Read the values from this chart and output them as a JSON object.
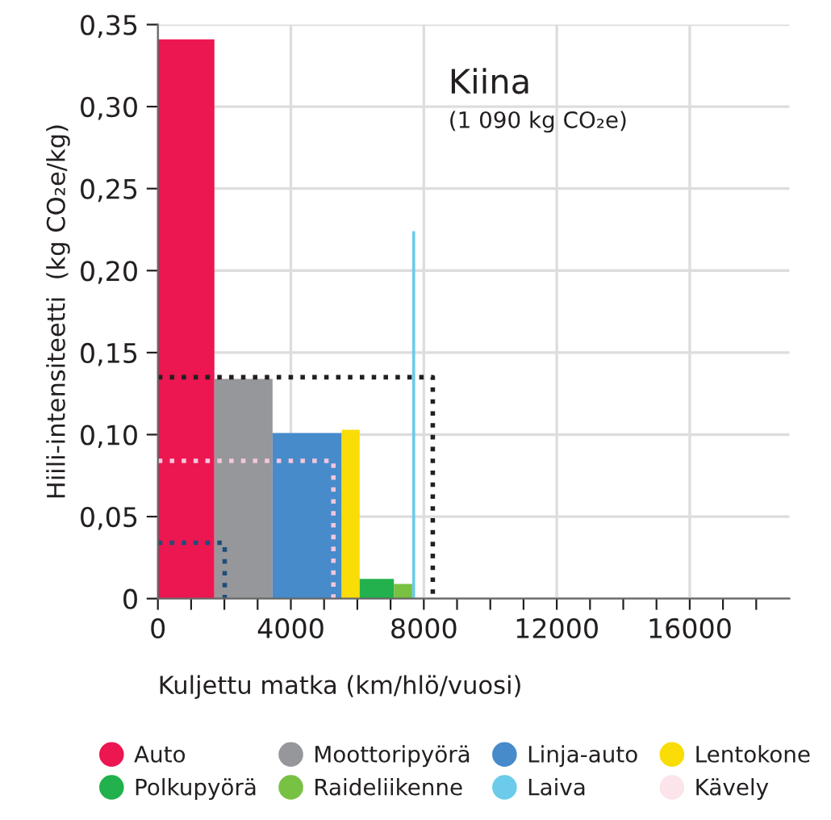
{
  "chart_data": {
    "type": "area",
    "xlabel": "Kuljettu matka (km/hlö/vuosi)",
    "ylabel": "Hiili-intensiteetti  (kg CO₂e/kg)",
    "annotations": [
      "Kiina",
      "(1 090 kg CO₂e)"
    ],
    "series": [
      {
        "name": "Auto",
        "color": "#ec1651",
        "x": [
          0,
          1700
        ],
        "values": [
          0.341,
          0.341
        ]
      },
      {
        "name": "Moottoripyörä",
        "color": "#96979b",
        "x": [
          1700,
          3450
        ],
        "values": [
          0.134,
          0.134
        ]
      },
      {
        "name": "Linja-auto",
        "color": "#478bcb",
        "x": [
          3450,
          5530
        ],
        "values": [
          0.101,
          0.101
        ]
      },
      {
        "name": "Lentokone",
        "color": "#fadc06",
        "x": [
          5530,
          6070
        ],
        "values": [
          0.103,
          0.103
        ]
      },
      {
        "name": "Polkupyörä",
        "color": "#22b14c",
        "x": [
          6070,
          7100
        ],
        "values": [
          0.012,
          0.012
        ]
      },
      {
        "name": "Raideliikenne",
        "color": "#78c143",
        "x": [
          7100,
          7650
        ],
        "values": [
          0.009,
          0.009
        ]
      },
      {
        "name": "Laiva",
        "color": "#6ccbea",
        "x": [
          7650,
          7740
        ],
        "values": [
          0.224,
          0.224
        ]
      },
      {
        "name": "Kävely",
        "color": "#fbe4ea",
        "values": [
          null,
          null
        ]
      },
      {
        "type": "line",
        "line_style": "dotted",
        "color": "#231f20",
        "x": [
          0,
          8270,
          8270
        ],
        "values": [
          0.135,
          0.135,
          0
        ]
      },
      {
        "type": "line",
        "line_style": "dotted",
        "color": "#f3c6da",
        "x": [
          0,
          5280,
          5280
        ],
        "values": [
          0.084,
          0.084,
          0
        ]
      },
      {
        "type": "line",
        "line_style": "dotted",
        "color": "#1f4e79",
        "x": [
          0,
          2010,
          2010
        ],
        "values": [
          0.034,
          0.034,
          0
        ]
      }
    ],
    "xlim": [
      0,
      19000
    ],
    "xticks": [
      0,
      {
        "value": 1000,
        "label": null
      },
      {
        "value": 2000,
        "label": null
      },
      {
        "value": 3000,
        "label": null
      },
      4000,
      {
        "value": 5000,
        "label": null
      },
      {
        "value": 6000,
        "label": null
      },
      {
        "value": 7000,
        "label": null
      },
      8000,
      {
        "value": 9000,
        "label": null
      },
      {
        "value": 10000,
        "label": null
      },
      {
        "value": 11000,
        "label": null
      },
      12000,
      {
        "value": 13000,
        "label": null
      },
      {
        "value": 14000,
        "label": null
      },
      {
        "value": 15000,
        "label": null
      },
      16000,
      {
        "value": 17000,
        "label": null
      },
      {
        "value": 18000,
        "label": null
      }
    ],
    "ylim": [
      0,
      0.35
    ],
    "yticks": [
      0,
      {
        "value": 0.05,
        "label": "0,05"
      },
      {
        "value": 0.1,
        "label": "0,10"
      },
      {
        "value": 0.15,
        "label": "0,15"
      },
      {
        "value": 0.2,
        "label": "0,20"
      },
      {
        "value": 0.25,
        "label": "0,25"
      },
      {
        "value": 0.3,
        "label": "0,30"
      },
      {
        "value": 0.35,
        "label": "0,35"
      }
    ],
    "grid": true,
    "legend": "bottom"
  }
}
